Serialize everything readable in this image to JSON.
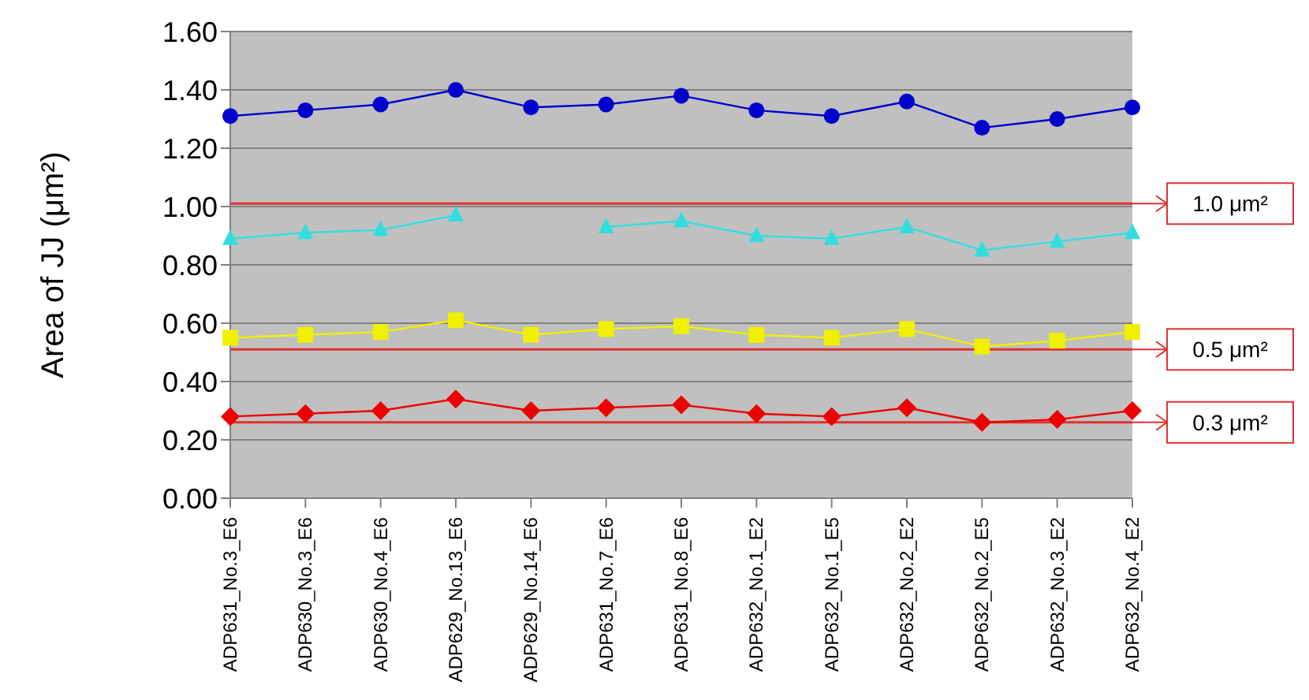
{
  "chart_data": {
    "type": "line",
    "ylabel": "Area of JJ (μm²)",
    "categories": [
      "ADP631_No.3_E6",
      "ADP630_No.3_E6",
      "ADP630_No.4_E6",
      "ADP629_No.13_E6",
      "ADP629_No.14_E6",
      "ADP631_No.7_E6",
      "ADP631_No.8_E6",
      "ADP632_No.1_E2",
      "ADP632_No.1_E5",
      "ADP632_No.2_E2",
      "ADP632_No.2_E5",
      "ADP632_No.3_E2",
      "ADP632_No.4_E2"
    ],
    "series": [
      {
        "color": "#0000cc",
        "marker": "circle",
        "values": [
          1.31,
          1.33,
          1.35,
          1.4,
          1.34,
          1.35,
          1.38,
          1.33,
          1.31,
          1.36,
          1.27,
          1.3,
          1.34
        ]
      },
      {
        "color": "#33dddd",
        "marker": "triangle",
        "values": [
          0.89,
          0.91,
          0.92,
          0.97,
          null,
          0.93,
          0.95,
          0.9,
          0.89,
          0.93,
          0.85,
          0.88,
          0.91
        ]
      },
      {
        "color": "#f0f000",
        "marker": "square",
        "values": [
          0.55,
          0.56,
          0.57,
          0.61,
          0.56,
          0.58,
          0.59,
          0.56,
          0.55,
          0.58,
          0.52,
          0.54,
          0.57
        ]
      },
      {
        "color": "#ee0000",
        "marker": "diamond",
        "values": [
          0.28,
          0.29,
          0.3,
          0.34,
          0.3,
          0.31,
          0.32,
          0.29,
          0.28,
          0.31,
          0.26,
          0.27,
          0.3
        ]
      }
    ],
    "ylim": [
      0,
      1.6
    ],
    "yticks": [
      {
        "value": 0,
        "label": "0.00"
      },
      {
        "value": 0.2,
        "label": "0.20"
      },
      {
        "value": 0.4,
        "label": "0.40"
      },
      {
        "value": 0.6,
        "label": "0.60"
      },
      {
        "value": 0.8,
        "label": "0.80"
      },
      {
        "value": 1.0,
        "label": "1.00"
      },
      {
        "value": 1.2,
        "label": "1.20"
      },
      {
        "value": 1.4,
        "label": "1.40"
      },
      {
        "value": 1.6,
        "label": "1.60"
      }
    ],
    "ref_lines": [
      {
        "axis": "y",
        "value": 1.01,
        "label": "1.0 μm²",
        "color": "#e03030"
      },
      {
        "axis": "y",
        "value": 0.51,
        "label": "0.5 μm²",
        "color": "#e03030"
      },
      {
        "axis": "y",
        "value": 0.26,
        "label": "0.3 μm²",
        "color": "#e03030"
      }
    ],
    "grid": "y",
    "legend": false,
    "line_style": "solid"
  }
}
